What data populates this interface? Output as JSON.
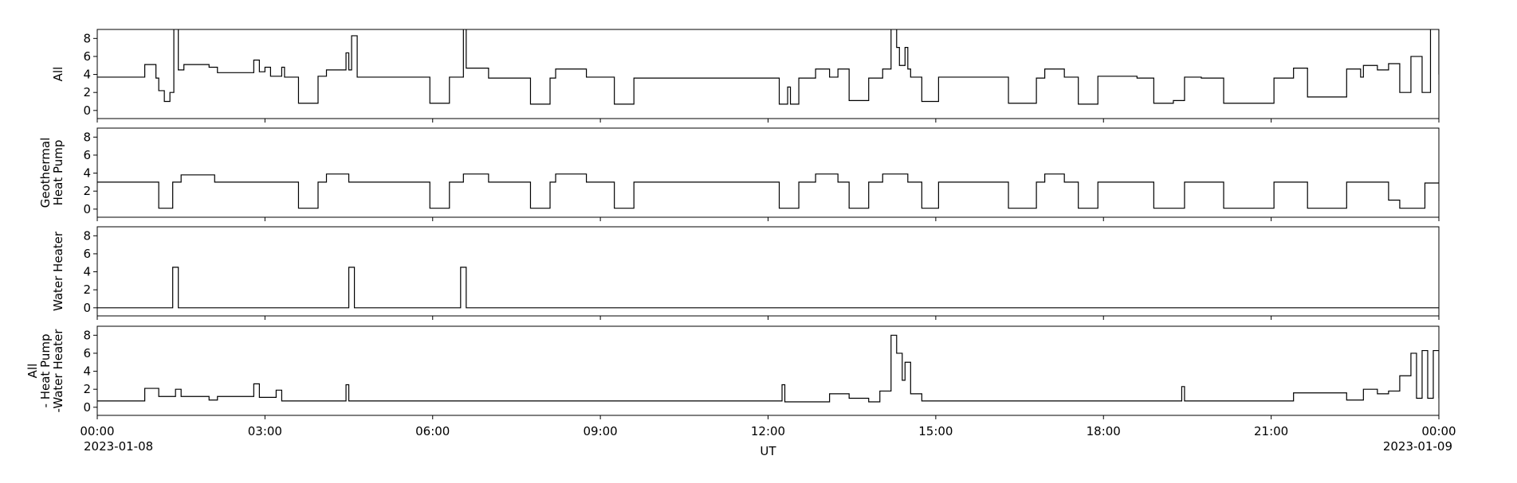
{
  "chart_data": [
    {
      "type": "line",
      "drawstyle": "steps-post",
      "ylabel": [
        "All"
      ],
      "color": "#000000",
      "x": [
        0,
        0.85,
        1.05,
        1.1,
        1.2,
        1.3,
        1.37,
        1.45,
        1.55,
        2.0,
        2.15,
        2.8,
        2.9,
        3.0,
        3.1,
        3.3,
        3.35,
        3.6,
        3.95,
        4.1,
        4.45,
        4.5,
        4.55,
        4.65,
        5.95,
        6.3,
        6.55,
        6.6,
        7.0,
        7.75,
        8.1,
        8.2,
        8.75,
        9.25,
        9.6,
        12.2,
        12.35,
        12.4,
        12.55,
        12.85,
        13.1,
        13.25,
        13.45,
        13.8,
        14.05,
        14.2,
        14.3,
        14.35,
        14.45,
        14.5,
        14.55,
        14.75,
        15.05,
        16.3,
        16.8,
        16.95,
        17.3,
        17.55,
        17.9,
        18.6,
        18.9,
        19.25,
        19.45,
        19.75,
        20.15,
        21.05,
        21.4,
        21.65,
        22.35,
        22.6,
        22.65,
        22.9,
        23.1,
        23.3,
        23.5,
        23.7,
        23.85,
        24
      ],
      "values": [
        3.7,
        5.1,
        3.6,
        2.2,
        1.0,
        2.0,
        9.5,
        4.5,
        5.1,
        4.8,
        4.2,
        5.6,
        4.3,
        4.8,
        3.8,
        4.8,
        3.7,
        0.8,
        3.8,
        4.5,
        6.4,
        4.5,
        8.3,
        3.7,
        0.8,
        3.7,
        9.5,
        4.7,
        3.6,
        0.7,
        3.6,
        4.6,
        3.7,
        0.7,
        3.6,
        0.7,
        2.6,
        0.7,
        3.6,
        4.6,
        3.7,
        4.6,
        1.1,
        3.6,
        4.6,
        9.5,
        7,
        5,
        7,
        4.6,
        3.7,
        1.0,
        3.7,
        0.8,
        3.6,
        4.6,
        3.7,
        0.7,
        3.8,
        3.6,
        0.8,
        1.1,
        3.7,
        3.6,
        0.8,
        3.6,
        4.7,
        1.5,
        4.6,
        3.7,
        5.0,
        4.5,
        5.2,
        2,
        6,
        2,
        9.5,
        4
      ],
      "ylim": [
        -0.9,
        9.0
      ],
      "yticks": [
        0,
        2,
        4,
        6,
        8
      ],
      "xlim": [
        0,
        24
      ]
    },
    {
      "type": "line",
      "drawstyle": "steps-post",
      "ylabel": [
        "Geothermal",
        "Heat Pump"
      ],
      "color": "#000000",
      "x": [
        0,
        1.1,
        1.35,
        1.5,
        2.1,
        3.6,
        3.95,
        4.1,
        4.5,
        5.95,
        6.3,
        6.55,
        7.0,
        7.75,
        8.1,
        8.2,
        8.75,
        9.25,
        9.6,
        12.2,
        12.55,
        12.85,
        13.25,
        13.45,
        13.8,
        14.05,
        14.5,
        14.75,
        15.05,
        16.3,
        16.8,
        16.95,
        17.3,
        17.55,
        17.9,
        18.9,
        19.45,
        20.15,
        21.05,
        21.65,
        22.35,
        23.1,
        23.3,
        23.75,
        24
      ],
      "values": [
        3.0,
        0.1,
        3.0,
        3.8,
        3.0,
        0.1,
        3.0,
        3.9,
        3.0,
        0.1,
        3.0,
        3.9,
        3.0,
        0.1,
        3.0,
        3.9,
        3.0,
        0.1,
        3.0,
        0.1,
        3.0,
        3.9,
        3.0,
        0.1,
        3.0,
        3.9,
        3.0,
        0.1,
        3.0,
        0.1,
        3.0,
        3.9,
        3.0,
        0.1,
        3.0,
        0.1,
        3.0,
        0.1,
        3.0,
        0.1,
        3.0,
        1.0,
        0.1,
        2.9,
        3.0
      ],
      "ylim": [
        -0.9,
        9.0
      ],
      "yticks": [
        0,
        2,
        4,
        6,
        8
      ],
      "xlim": [
        0,
        24
      ]
    },
    {
      "type": "line",
      "drawstyle": "steps-post",
      "ylabel": [
        "Water Heater"
      ],
      "color": "#000000",
      "x": [
        0,
        1.35,
        1.45,
        4.5,
        4.6,
        6.5,
        6.6,
        24
      ],
      "values": [
        0,
        4.5,
        0,
        4.5,
        0,
        4.5,
        0,
        0
      ],
      "ylim": [
        -0.9,
        9.0
      ],
      "yticks": [
        0,
        2,
        4,
        6,
        8
      ],
      "xlim": [
        0,
        24
      ]
    },
    {
      "type": "line",
      "drawstyle": "steps-post",
      "ylabel": [
        "All",
        "- Heat Pump",
        "-Water Heater"
      ],
      "color": "#000000",
      "x": [
        0,
        0.85,
        1.1,
        1.4,
        1.5,
        2.0,
        2.15,
        2.8,
        2.9,
        3.2,
        3.3,
        4.45,
        4.5,
        12.25,
        12.3,
        13.1,
        13.45,
        13.8,
        14.0,
        14.2,
        14.3,
        14.4,
        14.45,
        14.55,
        14.75,
        19.4,
        19.45,
        21.4,
        22.35,
        22.65,
        22.9,
        23.1,
        23.3,
        23.5,
        23.6,
        23.7,
        23.8,
        23.9,
        24
      ],
      "values": [
        0.7,
        2.1,
        1.2,
        2.0,
        1.2,
        0.8,
        1.2,
        2.6,
        1.1,
        1.9,
        0.7,
        2.5,
        0.7,
        2.5,
        0.6,
        1.5,
        1.0,
        0.6,
        1.8,
        8,
        6,
        3,
        5,
        1.5,
        0.7,
        2.3,
        0.7,
        1.6,
        0.8,
        2.0,
        1.5,
        1.8,
        3.5,
        6,
        1,
        6.3,
        1,
        6.3,
        1
      ],
      "ylim": [
        -0.9,
        9.0
      ],
      "yticks": [
        0,
        2,
        4,
        6,
        8
      ],
      "xlim": [
        0,
        24
      ],
      "xlabel": "UT",
      "xticks": [
        {
          "value": 0,
          "label": "00:00"
        },
        {
          "value": 3,
          "label": "03:00"
        },
        {
          "value": 6,
          "label": "06:00"
        },
        {
          "value": 9,
          "label": "09:00"
        },
        {
          "value": 12,
          "label": "12:00"
        },
        {
          "value": 15,
          "label": "15:00"
        },
        {
          "value": 18,
          "label": "18:00"
        },
        {
          "value": 21,
          "label": "21:00"
        },
        {
          "value": 24,
          "label": "00:00"
        }
      ],
      "x_sublabels": [
        {
          "value": 0,
          "label": "2023-01-08"
        },
        {
          "value": 24,
          "label": "2023-01-09"
        }
      ]
    }
  ]
}
